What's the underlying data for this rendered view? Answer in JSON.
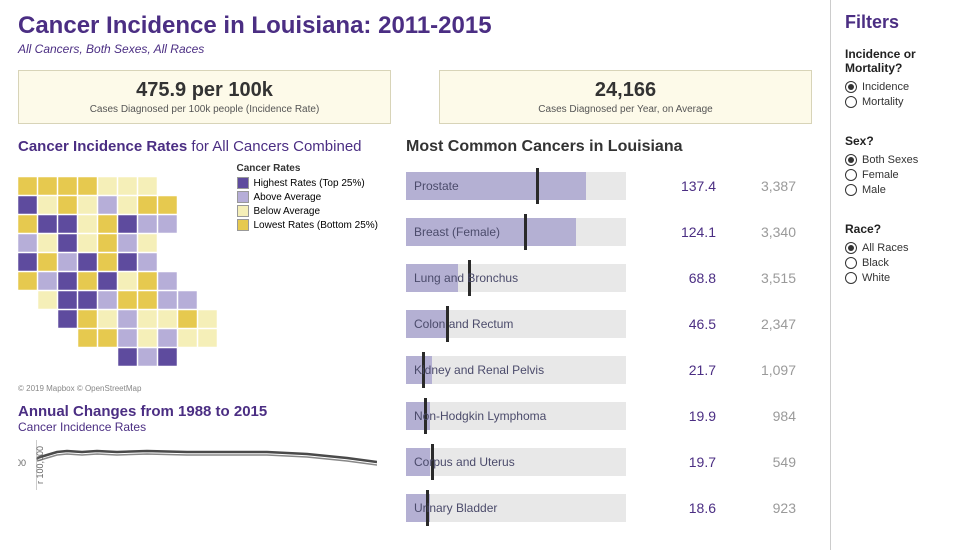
{
  "header": {
    "title": "Cancer Incidence in Louisiana: 2011-2015",
    "subtitle": "All Cancers, Both Sexes, All Races"
  },
  "stats": [
    {
      "value": "475.9 per 100k",
      "label": "Cases Diagnosed per 100k people (Incidence Rate)"
    },
    {
      "value": "24,166",
      "label": "Cases Diagnosed per Year, on Average"
    }
  ],
  "map_section": {
    "title_bold": "Cancer Incidence Rates",
    "title_light": "for All Cancers Combined",
    "legend_title": "Cancer Rates",
    "legend": [
      {
        "color": "#5e4b9e",
        "label": "Highest Rates (Top 25%)"
      },
      {
        "color": "#b6aed8",
        "label": "Above Average"
      },
      {
        "color": "#f5efb8",
        "label": "Below Average"
      },
      {
        "color": "#e6c94f",
        "label": "Lowest Rates (Bottom 25%)"
      }
    ],
    "credit": "© 2019 Mapbox © OpenStreetMap"
  },
  "trend_section": {
    "title": "Annual Changes from 1988 to 2015",
    "subtitle": "Cancer Incidence Rates",
    "ylabel": "r 100,000",
    "ytick": "400",
    "line_color": "#4a4a4a",
    "points": [
      [
        0,
        18
      ],
      [
        10,
        15
      ],
      [
        20,
        12
      ],
      [
        30,
        11
      ],
      [
        45,
        12
      ],
      [
        60,
        11
      ],
      [
        80,
        12
      ],
      [
        110,
        11
      ],
      [
        150,
        12
      ],
      [
        190,
        12
      ],
      [
        230,
        12
      ],
      [
        270,
        14
      ],
      [
        310,
        18
      ],
      [
        340,
        22
      ]
    ]
  },
  "cancer_table": {
    "title": "Most Common Cancers in Louisiana",
    "bar_bg_width": 220,
    "max_rate": 140,
    "bar_color": "#b4b0d3",
    "rows": [
      {
        "name": "Prostate",
        "rate": "137.4",
        "count": "3,387",
        "bar": 180,
        "marker": 130
      },
      {
        "name": "Breast (Female)",
        "rate": "124.1",
        "count": "3,340",
        "bar": 170,
        "marker": 118
      },
      {
        "name": "Lung and Bronchus",
        "rate": "68.8",
        "count": "3,515",
        "bar": 52,
        "marker": 62
      },
      {
        "name": "Colon and Rectum",
        "rate": "46.5",
        "count": "2,347",
        "bar": 42,
        "marker": 40
      },
      {
        "name": "Kidney and Renal Pelvis",
        "rate": "21.7",
        "count": "1,097",
        "bar": 26,
        "marker": 16
      },
      {
        "name": "Non-Hodgkin Lymphoma",
        "rate": "19.9",
        "count": "984",
        "bar": 24,
        "marker": 18
      },
      {
        "name": "Corpus and Uterus",
        "rate": "19.7",
        "count": "549",
        "bar": 24,
        "marker": 25
      },
      {
        "name": "Urinary Bladder",
        "rate": "18.6",
        "count": "923",
        "bar": 24,
        "marker": 20
      }
    ]
  },
  "filters": {
    "title": "Filters",
    "groups": [
      {
        "label": "Incidence or Mortality?",
        "options": [
          "Incidence",
          "Mortality"
        ],
        "selected": 0
      },
      {
        "label": "Sex?",
        "options": [
          "Both Sexes",
          "Female",
          "Male"
        ],
        "selected": 0
      },
      {
        "label": "Race?",
        "options": [
          "All Races",
          "Black",
          "White"
        ],
        "selected": 0
      }
    ]
  },
  "colors": {
    "primary": "#4b2e83",
    "stat_bg": "#fdfae9"
  }
}
